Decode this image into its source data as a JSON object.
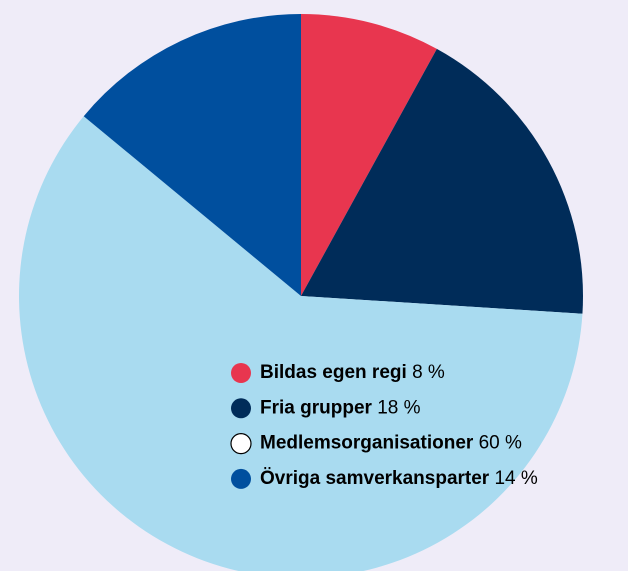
{
  "chart_data": {
    "type": "pie",
    "categories": [
      "Bildas egen regi",
      "Fria grupper",
      "Medlemsorganisationer",
      "Övriga samverkansparter"
    ],
    "values": [
      8,
      18,
      60,
      14
    ],
    "value_labels": [
      "8 %",
      "18 %",
      "60 %",
      "14 %"
    ],
    "colors": [
      "#e8364f",
      "#002c59",
      "#a9dbf0",
      "#004f9e"
    ],
    "legend_colors": [
      "#e8364f",
      "#002c59",
      "#ffffff",
      "#004f9e"
    ]
  }
}
